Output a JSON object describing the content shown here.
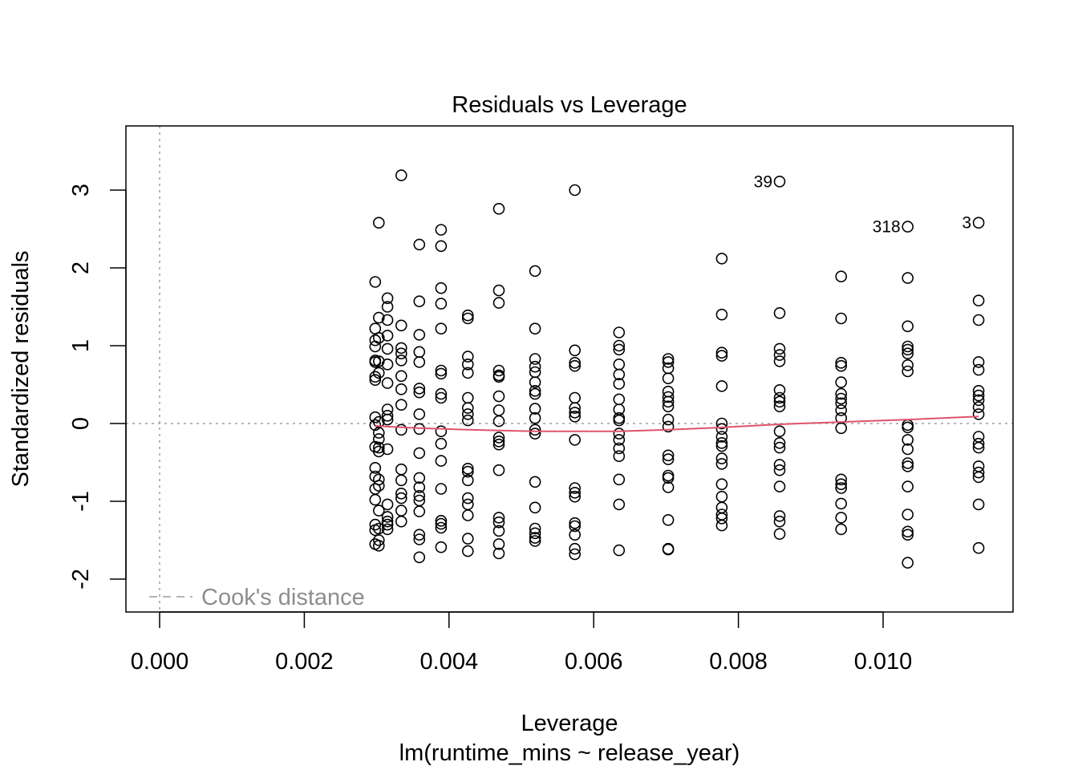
{
  "chart_data": {
    "type": "scatter",
    "title": "Residuals vs Leverage",
    "xlabel": "Leverage",
    "subtitle": "lm(runtime_mins ~ release_year)",
    "ylabel": "Standardized residuals",
    "xlim": [
      -0.0002,
      0.0118
    ],
    "ylim": [
      -2.4,
      3.8
    ],
    "x_ticks": [
      0.0,
      0.002,
      0.004,
      0.006,
      0.008,
      0.01
    ],
    "x_tick_labels": [
      "0.000",
      "0.002",
      "0.004",
      "0.006",
      "0.008",
      "0.010"
    ],
    "y_ticks": [
      -2,
      -1,
      0,
      1,
      2,
      3
    ],
    "y_tick_labels": [
      "-2",
      "-1",
      "0",
      "1",
      "2",
      "3"
    ],
    "legend": {
      "label": "Cook's distance",
      "position": "bottom-left",
      "line": "dashed"
    },
    "colors": {
      "points": "#000000",
      "smoother": "#DF536B",
      "reference": "#9E9E9E",
      "legend_text": "#8E8E8E"
    },
    "grid": false,
    "points": [
      {
        "x": 0.00298,
        "y": 1.82
      },
      {
        "x": 0.00298,
        "y": 1.22
      },
      {
        "x": 0.00298,
        "y": 1.07
      },
      {
        "x": 0.00298,
        "y": 0.99
      },
      {
        "x": 0.00298,
        "y": 0.81
      },
      {
        "x": 0.00298,
        "y": 0.79
      },
      {
        "x": 0.00298,
        "y": 0.6
      },
      {
        "x": 0.00298,
        "y": 0.56
      },
      {
        "x": 0.00298,
        "y": 0.08
      },
      {
        "x": 0.00298,
        "y": -0.02
      },
      {
        "x": 0.00298,
        "y": -0.3
      },
      {
        "x": 0.00298,
        "y": -0.57
      },
      {
        "x": 0.00298,
        "y": -0.68
      },
      {
        "x": 0.00298,
        "y": -0.84
      },
      {
        "x": 0.00298,
        "y": -0.98
      },
      {
        "x": 0.00298,
        "y": -1.3
      },
      {
        "x": 0.00298,
        "y": -1.37
      },
      {
        "x": 0.00298,
        "y": -1.55
      },
      {
        "x": 0.00303,
        "y": 2.58
      },
      {
        "x": 0.00303,
        "y": 1.36
      },
      {
        "x": 0.00303,
        "y": 1.1
      },
      {
        "x": 0.00303,
        "y": 0.8
      },
      {
        "x": 0.00303,
        "y": 0.65
      },
      {
        "x": 0.00303,
        "y": 0.02
      },
      {
        "x": 0.00303,
        "y": -0.12
      },
      {
        "x": 0.00303,
        "y": -0.2
      },
      {
        "x": 0.00303,
        "y": -0.31
      },
      {
        "x": 0.00303,
        "y": -0.36
      },
      {
        "x": 0.00303,
        "y": -0.72
      },
      {
        "x": 0.00303,
        "y": -0.8
      },
      {
        "x": 0.00303,
        "y": -1.12
      },
      {
        "x": 0.00303,
        "y": -1.35
      },
      {
        "x": 0.00303,
        "y": -1.5
      },
      {
        "x": 0.00303,
        "y": -1.57
      },
      {
        "x": 0.00315,
        "y": 1.61
      },
      {
        "x": 0.00315,
        "y": 1.5
      },
      {
        "x": 0.00315,
        "y": 1.33
      },
      {
        "x": 0.00315,
        "y": 1.13
      },
      {
        "x": 0.00315,
        "y": 0.96
      },
      {
        "x": 0.00315,
        "y": 0.76
      },
      {
        "x": 0.00315,
        "y": 0.52
      },
      {
        "x": 0.00315,
        "y": 0.18
      },
      {
        "x": 0.00315,
        "y": 0.1
      },
      {
        "x": 0.00315,
        "y": 0.05
      },
      {
        "x": 0.00315,
        "y": -0.33
      },
      {
        "x": 0.00315,
        "y": -1.04
      },
      {
        "x": 0.00315,
        "y": -1.2
      },
      {
        "x": 0.00315,
        "y": -1.26
      },
      {
        "x": 0.00315,
        "y": -1.3
      },
      {
        "x": 0.00315,
        "y": -1.36
      },
      {
        "x": 0.00334,
        "y": 3.19
      },
      {
        "x": 0.00334,
        "y": 1.26
      },
      {
        "x": 0.00334,
        "y": 0.97
      },
      {
        "x": 0.00334,
        "y": 0.9
      },
      {
        "x": 0.00334,
        "y": 0.81
      },
      {
        "x": 0.00334,
        "y": 0.61
      },
      {
        "x": 0.00334,
        "y": 0.44
      },
      {
        "x": 0.00334,
        "y": 0.24
      },
      {
        "x": 0.00334,
        "y": -0.08
      },
      {
        "x": 0.00334,
        "y": -0.59
      },
      {
        "x": 0.00334,
        "y": -0.73
      },
      {
        "x": 0.00334,
        "y": -0.9
      },
      {
        "x": 0.00334,
        "y": -0.96
      },
      {
        "x": 0.00334,
        "y": -1.12
      },
      {
        "x": 0.00334,
        "y": -1.26
      },
      {
        "x": 0.00359,
        "y": 2.3
      },
      {
        "x": 0.00359,
        "y": 1.57
      },
      {
        "x": 0.00359,
        "y": 1.14
      },
      {
        "x": 0.00359,
        "y": 0.92
      },
      {
        "x": 0.00359,
        "y": 0.79
      },
      {
        "x": 0.00359,
        "y": 0.45
      },
      {
        "x": 0.00359,
        "y": 0.4
      },
      {
        "x": 0.00359,
        "y": 0.12
      },
      {
        "x": 0.00359,
        "y": -0.07
      },
      {
        "x": 0.00359,
        "y": -0.38
      },
      {
        "x": 0.00359,
        "y": -0.7
      },
      {
        "x": 0.00359,
        "y": -0.82
      },
      {
        "x": 0.00359,
        "y": -0.93
      },
      {
        "x": 0.00359,
        "y": -0.99
      },
      {
        "x": 0.00359,
        "y": -1.13
      },
      {
        "x": 0.00359,
        "y": -1.43
      },
      {
        "x": 0.00359,
        "y": -1.49
      },
      {
        "x": 0.00359,
        "y": -1.72
      },
      {
        "x": 0.00389,
        "y": 2.49
      },
      {
        "x": 0.00389,
        "y": 2.28
      },
      {
        "x": 0.00389,
        "y": 1.74
      },
      {
        "x": 0.00389,
        "y": 1.54
      },
      {
        "x": 0.00389,
        "y": 1.22
      },
      {
        "x": 0.00389,
        "y": 0.68
      },
      {
        "x": 0.00389,
        "y": 0.64
      },
      {
        "x": 0.00389,
        "y": 0.38
      },
      {
        "x": 0.00389,
        "y": 0.33
      },
      {
        "x": 0.00389,
        "y": -0.1
      },
      {
        "x": 0.00389,
        "y": -0.26
      },
      {
        "x": 0.00389,
        "y": -0.48
      },
      {
        "x": 0.00389,
        "y": -0.84
      },
      {
        "x": 0.00389,
        "y": -1.25
      },
      {
        "x": 0.00389,
        "y": -1.29
      },
      {
        "x": 0.00389,
        "y": -1.34
      },
      {
        "x": 0.00389,
        "y": -1.59
      },
      {
        "x": 0.00426,
        "y": 1.39
      },
      {
        "x": 0.00426,
        "y": 1.35
      },
      {
        "x": 0.00426,
        "y": 0.86
      },
      {
        "x": 0.00426,
        "y": 0.76
      },
      {
        "x": 0.00426,
        "y": 0.65
      },
      {
        "x": 0.00426,
        "y": 0.33
      },
      {
        "x": 0.00426,
        "y": 0.2
      },
      {
        "x": 0.00426,
        "y": 0.12
      },
      {
        "x": 0.00426,
        "y": 0.04
      },
      {
        "x": 0.00426,
        "y": -0.58
      },
      {
        "x": 0.00426,
        "y": -0.62
      },
      {
        "x": 0.00426,
        "y": -0.73
      },
      {
        "x": 0.00426,
        "y": -0.96
      },
      {
        "x": 0.00426,
        "y": -1.04
      },
      {
        "x": 0.00426,
        "y": -1.18
      },
      {
        "x": 0.00426,
        "y": -1.48
      },
      {
        "x": 0.00426,
        "y": -1.64
      },
      {
        "x": 0.00469,
        "y": 2.76
      },
      {
        "x": 0.00469,
        "y": 1.71
      },
      {
        "x": 0.00469,
        "y": 1.55
      },
      {
        "x": 0.00469,
        "y": 0.68
      },
      {
        "x": 0.00469,
        "y": 0.62
      },
      {
        "x": 0.00469,
        "y": 0.6
      },
      {
        "x": 0.00469,
        "y": 0.35
      },
      {
        "x": 0.00469,
        "y": 0.17
      },
      {
        "x": 0.00469,
        "y": 0.03
      },
      {
        "x": 0.00469,
        "y": -0.18
      },
      {
        "x": 0.00469,
        "y": -0.23
      },
      {
        "x": 0.00469,
        "y": -0.27
      },
      {
        "x": 0.00469,
        "y": -0.6
      },
      {
        "x": 0.00469,
        "y": -1.21
      },
      {
        "x": 0.00469,
        "y": -1.27
      },
      {
        "x": 0.00469,
        "y": -1.38
      },
      {
        "x": 0.00469,
        "y": -1.55
      },
      {
        "x": 0.00469,
        "y": -1.67
      },
      {
        "x": 0.00519,
        "y": 1.96
      },
      {
        "x": 0.00519,
        "y": 1.22
      },
      {
        "x": 0.00519,
        "y": 0.83
      },
      {
        "x": 0.00519,
        "y": 0.73
      },
      {
        "x": 0.00519,
        "y": 0.66
      },
      {
        "x": 0.00519,
        "y": 0.53
      },
      {
        "x": 0.00519,
        "y": 0.42
      },
      {
        "x": 0.00519,
        "y": 0.38
      },
      {
        "x": 0.00519,
        "y": 0.19
      },
      {
        "x": 0.00519,
        "y": 0.07
      },
      {
        "x": 0.00519,
        "y": -0.08
      },
      {
        "x": 0.00519,
        "y": -0.13
      },
      {
        "x": 0.00519,
        "y": -0.75
      },
      {
        "x": 0.00519,
        "y": -1.08
      },
      {
        "x": 0.00519,
        "y": -1.35
      },
      {
        "x": 0.00519,
        "y": -1.41
      },
      {
        "x": 0.00519,
        "y": -1.47
      },
      {
        "x": 0.00519,
        "y": -1.51
      },
      {
        "x": 0.00574,
        "y": 3.0
      },
      {
        "x": 0.00574,
        "y": 0.94
      },
      {
        "x": 0.00574,
        "y": 0.78
      },
      {
        "x": 0.00574,
        "y": 0.74
      },
      {
        "x": 0.00574,
        "y": 0.33
      },
      {
        "x": 0.00574,
        "y": 0.2
      },
      {
        "x": 0.00574,
        "y": 0.14
      },
      {
        "x": 0.00574,
        "y": 0.09
      },
      {
        "x": 0.00574,
        "y": -0.21
      },
      {
        "x": 0.00574,
        "y": -0.83
      },
      {
        "x": 0.00574,
        "y": -0.89
      },
      {
        "x": 0.00574,
        "y": -0.94
      },
      {
        "x": 0.00574,
        "y": -1.28
      },
      {
        "x": 0.00574,
        "y": -1.32
      },
      {
        "x": 0.00574,
        "y": -1.43
      },
      {
        "x": 0.00574,
        "y": -1.61
      },
      {
        "x": 0.00574,
        "y": -1.68
      },
      {
        "x": 0.00635,
        "y": 1.17
      },
      {
        "x": 0.00635,
        "y": 1.0
      },
      {
        "x": 0.00635,
        "y": 0.95
      },
      {
        "x": 0.00635,
        "y": 0.76
      },
      {
        "x": 0.00635,
        "y": 0.63
      },
      {
        "x": 0.00635,
        "y": 0.51
      },
      {
        "x": 0.00635,
        "y": 0.31
      },
      {
        "x": 0.00635,
        "y": 0.18
      },
      {
        "x": 0.00635,
        "y": 0.07
      },
      {
        "x": 0.00635,
        "y": 0.04
      },
      {
        "x": 0.00635,
        "y": -0.13
      },
      {
        "x": 0.00635,
        "y": -0.21
      },
      {
        "x": 0.00635,
        "y": -0.32
      },
      {
        "x": 0.00635,
        "y": -0.42
      },
      {
        "x": 0.00635,
        "y": -0.72
      },
      {
        "x": 0.00635,
        "y": -1.04
      },
      {
        "x": 0.00635,
        "y": -1.63
      },
      {
        "x": 0.00703,
        "y": 0.83
      },
      {
        "x": 0.00703,
        "y": 0.79
      },
      {
        "x": 0.00703,
        "y": 0.71
      },
      {
        "x": 0.00703,
        "y": 0.58
      },
      {
        "x": 0.00703,
        "y": 0.41
      },
      {
        "x": 0.00703,
        "y": 0.34
      },
      {
        "x": 0.00703,
        "y": 0.28
      },
      {
        "x": 0.00703,
        "y": 0.22
      },
      {
        "x": 0.00703,
        "y": 0.05
      },
      {
        "x": 0.00703,
        "y": -0.04
      },
      {
        "x": 0.00703,
        "y": -0.41
      },
      {
        "x": 0.00703,
        "y": -0.46
      },
      {
        "x": 0.00703,
        "y": -0.67
      },
      {
        "x": 0.00703,
        "y": -0.7
      },
      {
        "x": 0.00703,
        "y": -0.82
      },
      {
        "x": 0.00703,
        "y": -1.24
      },
      {
        "x": 0.00703,
        "y": -1.61
      },
      {
        "x": 0.00703,
        "y": -1.62
      },
      {
        "x": 0.00777,
        "y": 2.12
      },
      {
        "x": 0.00777,
        "y": 1.4
      },
      {
        "x": 0.00777,
        "y": 0.91
      },
      {
        "x": 0.00777,
        "y": 0.87
      },
      {
        "x": 0.00777,
        "y": 0.48
      },
      {
        "x": 0.00777,
        "y": 0.0
      },
      {
        "x": 0.00777,
        "y": -0.07
      },
      {
        "x": 0.00777,
        "y": -0.17
      },
      {
        "x": 0.00777,
        "y": -0.25
      },
      {
        "x": 0.00777,
        "y": -0.29
      },
      {
        "x": 0.00777,
        "y": -0.45
      },
      {
        "x": 0.00777,
        "y": -0.52
      },
      {
        "x": 0.00777,
        "y": -0.78
      },
      {
        "x": 0.00777,
        "y": -0.94
      },
      {
        "x": 0.00777,
        "y": -1.08
      },
      {
        "x": 0.00777,
        "y": -1.17
      },
      {
        "x": 0.00777,
        "y": -1.22
      },
      {
        "x": 0.00777,
        "y": -1.31
      },
      {
        "x": 0.00857,
        "y": 3.11
      },
      {
        "x": 0.00857,
        "y": 1.42
      },
      {
        "x": 0.00857,
        "y": 0.96
      },
      {
        "x": 0.00857,
        "y": 0.88
      },
      {
        "x": 0.00857,
        "y": 0.8
      },
      {
        "x": 0.00857,
        "y": 0.43
      },
      {
        "x": 0.00857,
        "y": 0.33
      },
      {
        "x": 0.00857,
        "y": 0.28
      },
      {
        "x": 0.00857,
        "y": 0.22
      },
      {
        "x": 0.00857,
        "y": -0.1
      },
      {
        "x": 0.00857,
        "y": -0.25
      },
      {
        "x": 0.00857,
        "y": -0.31
      },
      {
        "x": 0.00857,
        "y": -0.53
      },
      {
        "x": 0.00857,
        "y": -0.6
      },
      {
        "x": 0.00857,
        "y": -0.81
      },
      {
        "x": 0.00857,
        "y": -1.19
      },
      {
        "x": 0.00857,
        "y": -1.26
      },
      {
        "x": 0.00857,
        "y": -1.42
      },
      {
        "x": 0.00942,
        "y": 1.89
      },
      {
        "x": 0.00942,
        "y": 1.35
      },
      {
        "x": 0.00942,
        "y": 0.78
      },
      {
        "x": 0.00942,
        "y": 0.74
      },
      {
        "x": 0.00942,
        "y": 0.53
      },
      {
        "x": 0.00942,
        "y": 0.38
      },
      {
        "x": 0.00942,
        "y": 0.32
      },
      {
        "x": 0.00942,
        "y": 0.26
      },
      {
        "x": 0.00942,
        "y": 0.17
      },
      {
        "x": 0.00942,
        "y": 0.07
      },
      {
        "x": 0.00942,
        "y": -0.06
      },
      {
        "x": 0.00942,
        "y": -0.72
      },
      {
        "x": 0.00942,
        "y": -0.78
      },
      {
        "x": 0.00942,
        "y": -0.83
      },
      {
        "x": 0.00942,
        "y": -1.03
      },
      {
        "x": 0.00942,
        "y": -1.21
      },
      {
        "x": 0.00942,
        "y": -1.36
      },
      {
        "x": 0.01034,
        "y": 2.53
      },
      {
        "x": 0.01034,
        "y": 1.87
      },
      {
        "x": 0.01034,
        "y": 1.25
      },
      {
        "x": 0.01034,
        "y": 0.99
      },
      {
        "x": 0.01034,
        "y": 0.95
      },
      {
        "x": 0.01034,
        "y": 0.9
      },
      {
        "x": 0.01034,
        "y": 0.75
      },
      {
        "x": 0.01034,
        "y": 0.67
      },
      {
        "x": 0.01034,
        "y": -0.02
      },
      {
        "x": 0.01034,
        "y": -0.05
      },
      {
        "x": 0.01034,
        "y": -0.21
      },
      {
        "x": 0.01034,
        "y": -0.33
      },
      {
        "x": 0.01034,
        "y": -0.51
      },
      {
        "x": 0.01034,
        "y": -0.55
      },
      {
        "x": 0.01034,
        "y": -0.81
      },
      {
        "x": 0.01034,
        "y": -1.17
      },
      {
        "x": 0.01034,
        "y": -1.39
      },
      {
        "x": 0.01034,
        "y": -1.43
      },
      {
        "x": 0.01034,
        "y": -1.79
      },
      {
        "x": 0.01132,
        "y": 2.58
      },
      {
        "x": 0.01132,
        "y": 1.58
      },
      {
        "x": 0.01132,
        "y": 1.33
      },
      {
        "x": 0.01132,
        "y": 0.79
      },
      {
        "x": 0.01132,
        "y": 0.69
      },
      {
        "x": 0.01132,
        "y": 0.42
      },
      {
        "x": 0.01132,
        "y": 0.36
      },
      {
        "x": 0.01132,
        "y": 0.3
      },
      {
        "x": 0.01132,
        "y": 0.21
      },
      {
        "x": 0.01132,
        "y": 0.12
      },
      {
        "x": 0.01132,
        "y": -0.17
      },
      {
        "x": 0.01132,
        "y": -0.26
      },
      {
        "x": 0.01132,
        "y": -0.31
      },
      {
        "x": 0.01132,
        "y": -0.55
      },
      {
        "x": 0.01132,
        "y": -0.63
      },
      {
        "x": 0.01132,
        "y": -0.69
      },
      {
        "x": 0.01132,
        "y": -1.04
      },
      {
        "x": 0.01132,
        "y": -1.6
      }
    ],
    "labeled_points": [
      {
        "label": "39",
        "x": 0.00857,
        "y": 3.11
      },
      {
        "label": "318",
        "x": 0.01034,
        "y": 2.53
      },
      {
        "label": "3",
        "x": 0.01132,
        "y": 2.58
      }
    ],
    "smoother": {
      "x": [
        0.00298,
        0.00315,
        0.00359,
        0.00426,
        0.00519,
        0.00574,
        0.00635,
        0.00703,
        0.00777,
        0.00857,
        0.00942,
        0.01034,
        0.01132
      ],
      "y": [
        -0.03,
        -0.04,
        -0.06,
        -0.08,
        -0.1,
        -0.1,
        -0.1,
        -0.08,
        -0.05,
        -0.01,
        0.02,
        0.05,
        0.09
      ]
    }
  }
}
